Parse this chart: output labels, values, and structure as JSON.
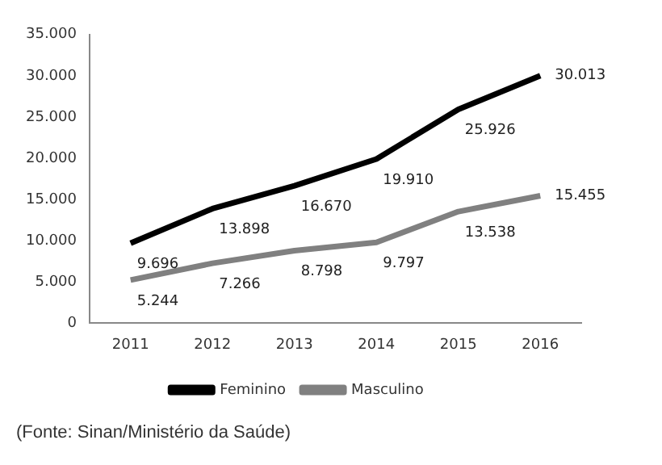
{
  "chart_data": {
    "type": "line",
    "categories": [
      "2011",
      "2012",
      "2013",
      "2014",
      "2015",
      "2016"
    ],
    "series": [
      {
        "name": "Feminino",
        "color": "#000000",
        "values": [
          9696,
          13898,
          16670,
          19910,
          25926,
          30013
        ],
        "value_labels": [
          "9.696",
          "13.898",
          "16.670",
          "19.910",
          "25.926",
          "30.013"
        ]
      },
      {
        "name": "Masculino",
        "color": "#808080",
        "values": [
          5244,
          7266,
          8798,
          9797,
          13538,
          15455
        ],
        "value_labels": [
          "5.244",
          "7.266",
          "8.798",
          "9.797",
          "13.538",
          "15.455"
        ]
      }
    ],
    "ylim": [
      0,
      35000
    ],
    "yticks": [
      {
        "value": 0,
        "label": "0"
      },
      {
        "value": 5000,
        "label": "5.000"
      },
      {
        "value": 10000,
        "label": "10.000"
      },
      {
        "value": 15000,
        "label": "15.000"
      },
      {
        "value": 20000,
        "label": "20.000"
      },
      {
        "value": 25000,
        "label": "25.000"
      },
      {
        "value": 30000,
        "label": "30.000"
      },
      {
        "value": 35000,
        "label": "35.000"
      }
    ],
    "grid": false,
    "legend": "bottom",
    "marker": "none",
    "line_style": "solid",
    "annotations": [
      "(Fonte: Sinan/Ministério da Saúde)"
    ]
  }
}
